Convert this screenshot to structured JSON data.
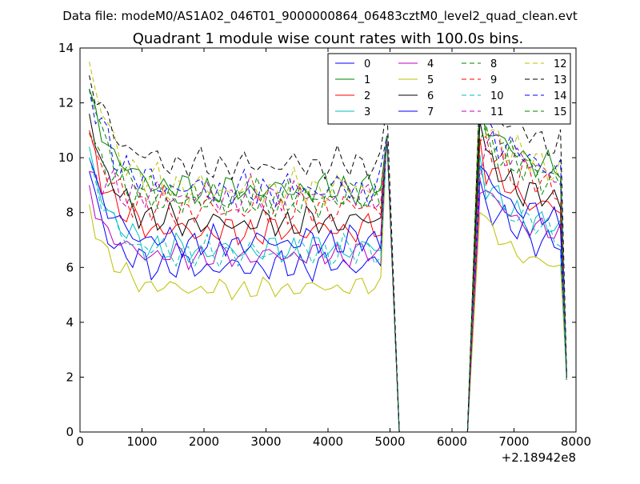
{
  "chart_data": {
    "type": "line",
    "file_title": "Data file: modeM0/AS1A02_046T01_9000000864_06483cztM0_level2_quad_clean.evt",
    "title": "Quadrant 1 module wise count rates with 100.0s bins.",
    "xlabel": "",
    "ylabel": "",
    "x_offset_label": "+2.18942e8",
    "xlim": [
      0,
      8000
    ],
    "ylim": [
      0,
      14
    ],
    "x_ticks": [
      0,
      1000,
      2000,
      3000,
      4000,
      5000,
      6000,
      7000,
      8000
    ],
    "y_ticks": [
      0,
      2,
      4,
      6,
      8,
      10,
      12,
      14
    ],
    "grid": false,
    "legend_position": "top-right",
    "legend_columns": 4,
    "segments": [
      {
        "x_start": 150,
        "x_end": 4950,
        "step": 100
      },
      {
        "x_start": 6450,
        "x_end": 7750,
        "step": 100
      }
    ],
    "gap": {
      "x": [
        5150,
        6250
      ],
      "y": 0
    },
    "series": [
      {
        "name": "0",
        "color": "#0000ff",
        "dashed": false,
        "base": 6.0,
        "start": 9.5,
        "decay": 3.5,
        "amp": 0.35,
        "phase": 0.0,
        "trend": 0.12,
        "edge_hi": 10.8,
        "edge_end": 1.9
      },
      {
        "name": "1",
        "color": "#008000",
        "dashed": false,
        "base": 8.8,
        "start": 12.5,
        "decay": 2.5,
        "amp": 0.35,
        "phase": 0.7,
        "trend": 0.12,
        "edge_hi": 10.8,
        "edge_end": 1.9
      },
      {
        "name": "2",
        "color": "#ff0000",
        "dashed": false,
        "base": 7.3,
        "start": 11.0,
        "decay": 3.0,
        "amp": 0.35,
        "phase": 1.4,
        "trend": 0.12,
        "edge_hi": 10.8,
        "edge_end": 1.9
      },
      {
        "name": "3",
        "color": "#00bfbf",
        "dashed": false,
        "base": 6.6,
        "start": 10.4,
        "decay": 3.0,
        "amp": 0.35,
        "phase": 2.1,
        "trend": 0.12,
        "edge_hi": 10.8,
        "edge_end": 1.9
      },
      {
        "name": "4",
        "color": "#bf00bf",
        "dashed": false,
        "base": 6.4,
        "start": 9.0,
        "decay": 3.5,
        "amp": 0.3,
        "phase": 2.8,
        "trend": 0.12,
        "edge_hi": 10.8,
        "edge_end": 1.9
      },
      {
        "name": "5",
        "color": "#bfbf00",
        "dashed": false,
        "base": 5.2,
        "start": 8.3,
        "decay": 3.0,
        "amp": 0.25,
        "phase": 3.5,
        "trend": 0.12,
        "edge_hi": 10.8,
        "edge_end": 1.9
      },
      {
        "name": "6",
        "color": "#000000",
        "dashed": false,
        "base": 7.6,
        "start": 11.6,
        "decay": 2.8,
        "amp": 0.35,
        "phase": 4.2,
        "trend": 0.12,
        "edge_hi": 10.8,
        "edge_end": 1.9
      },
      {
        "name": "7",
        "color": "#0000ff",
        "dashed": false,
        "base": 6.9,
        "start": 10.0,
        "decay": 3.2,
        "amp": 0.35,
        "phase": 4.9,
        "trend": 0.12,
        "edge_hi": 10.8,
        "edge_end": 1.9
      },
      {
        "name": "8",
        "color": "#008000",
        "dashed": true,
        "base": 8.5,
        "start": 10.9,
        "decay": 3.0,
        "amp": 0.4,
        "phase": 5.6,
        "trend": 0.12,
        "edge_hi": 10.8,
        "edge_end": 1.9
      },
      {
        "name": "9",
        "color": "#ff0000",
        "dashed": true,
        "base": 8.1,
        "start": 10.9,
        "decay": 3.0,
        "amp": 0.4,
        "phase": 6.3,
        "trend": 0.12,
        "edge_hi": 10.8,
        "edge_end": 1.9
      },
      {
        "name": "10",
        "color": "#00bfbf",
        "dashed": true,
        "base": 6.5,
        "start": 10.0,
        "decay": 3.0,
        "amp": 0.35,
        "phase": 7.0,
        "trend": 0.12,
        "edge_hi": 10.8,
        "edge_end": 1.9
      },
      {
        "name": "11",
        "color": "#bf00bf",
        "dashed": true,
        "base": 8.6,
        "start": 9.5,
        "decay": 3.0,
        "amp": 0.4,
        "phase": 7.7,
        "trend": 0.12,
        "edge_hi": 10.8,
        "edge_end": 1.9
      },
      {
        "name": "12",
        "color": "#bfbf00",
        "dashed": true,
        "base": 8.8,
        "start": 13.5,
        "decay": 2.5,
        "amp": 0.4,
        "phase": 8.4,
        "trend": 0.12,
        "edge_hi": 10.8,
        "edge_end": 1.9
      },
      {
        "name": "13",
        "color": "#000000",
        "dashed": true,
        "base": 9.7,
        "start": 13.0,
        "decay": 2.5,
        "amp": 0.35,
        "phase": 9.1,
        "trend": 0.12,
        "edge_hi": 11.9,
        "edge_end": 2.1
      },
      {
        "name": "14",
        "color": "#0000ff",
        "dashed": true,
        "base": 8.8,
        "start": 12.5,
        "decay": 2.5,
        "amp": 0.4,
        "phase": 9.8,
        "trend": 0.12,
        "edge_hi": 10.8,
        "edge_end": 1.9
      },
      {
        "name": "15",
        "color": "#008000",
        "dashed": true,
        "base": 8.4,
        "start": 12.5,
        "decay": 2.5,
        "amp": 0.4,
        "phase": 10.5,
        "trend": 0.12,
        "edge_hi": 10.8,
        "edge_end": 1.9
      }
    ]
  }
}
